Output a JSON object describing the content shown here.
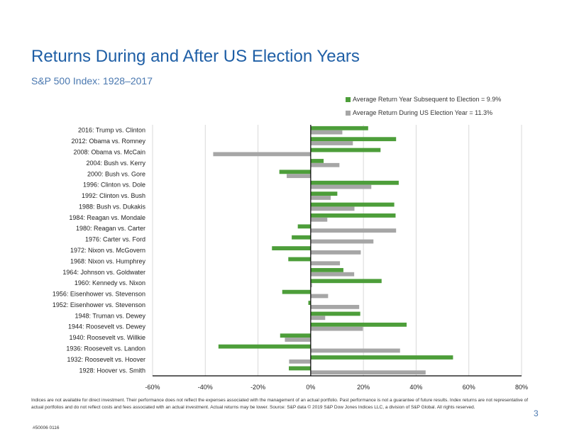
{
  "slide": {
    "title": "Returns During and After US Election Years",
    "subtitle": "S&P 500 Index: 1928–2017",
    "footnote": "Indices are not available for direct investment. Their performance does not reflect the expenses associated with the management of an actual portfolio. Past performance is not a guarantee of future results. Index returns are not representative of actual portfolios and do not reflect costs and fees associated with an actual investment. Actual returns may be lower. Source: S&P data © 2019 S&P Dow Jones Indices LLC, a division of S&P Global. All rights reserved.",
    "page_number": "3",
    "code": "#50006 0116"
  },
  "colors": {
    "subsequent": "#4d9e3a",
    "during": "#a6a6a6",
    "gridline": "#d9d9d9",
    "axis": "#000000",
    "title": "#1f5fa6"
  },
  "chart_data": {
    "type": "bar",
    "orientation": "horizontal",
    "title": "Returns During and After US Election Years",
    "subtitle": "S&P 500 Index: 1928–2017",
    "xlim": [
      -60,
      80
    ],
    "xticks": [
      -60,
      -40,
      -20,
      0,
      20,
      40,
      60,
      80
    ],
    "xtick_labels": [
      "-60%",
      "-40%",
      "-20%",
      "0%",
      "20%",
      "40%",
      "60%",
      "80%"
    ],
    "categories": [
      "2016: Trump vs. Clinton",
      "2012: Obama vs. Romney",
      "2008: Obama vs. McCain",
      "2004: Bush vs. Kerry",
      "2000: Bush vs. Gore",
      "1996: Clinton vs. Dole",
      "1992: Clinton vs. Bush",
      "1988: Bush vs. Dukakis",
      "1984: Reagan vs. Mondale",
      "1980: Reagan vs. Carter",
      "1976: Carter vs. Ford",
      "1972: Nixon vs. McGovern",
      "1968: Nixon vs. Humphrey",
      "1964: Johnson vs. Goldwater",
      "1960: Kennedy vs. Nixon",
      "1956: Eisenhower vs. Stevenson",
      "1952: Eisenhower vs. Stevenson",
      "1948: Truman vs. Dewey",
      "1944: Roosevelt vs. Dewey",
      "1940: Roosevelt vs. Willkie",
      "1936: Roosevelt vs. Landon",
      "1932: Roosevelt vs. Hoover",
      "1928: Hoover vs. Smith"
    ],
    "series": [
      {
        "name": "Average Return Year Subsequent to Election = 9.9%",
        "values": [
          21.8,
          32.4,
          26.5,
          4.9,
          -11.9,
          33.4,
          10.1,
          31.7,
          32.2,
          -4.9,
          -7.2,
          -14.7,
          -8.5,
          12.4,
          26.9,
          -10.8,
          -0.9,
          18.8,
          36.4,
          -11.6,
          -35.0,
          54.0,
          -8.3
        ]
      },
      {
        "name": "Average Return During US Election Year = 11.3%",
        "values": [
          12.0,
          16.0,
          -37.0,
          10.9,
          -9.1,
          23.0,
          7.6,
          16.6,
          6.3,
          32.4,
          23.8,
          19.0,
          11.1,
          16.5,
          0.5,
          6.6,
          18.4,
          5.5,
          19.8,
          -9.8,
          33.9,
          -8.2,
          43.6
        ]
      }
    ],
    "legend_position": "top-right",
    "grid": true
  }
}
